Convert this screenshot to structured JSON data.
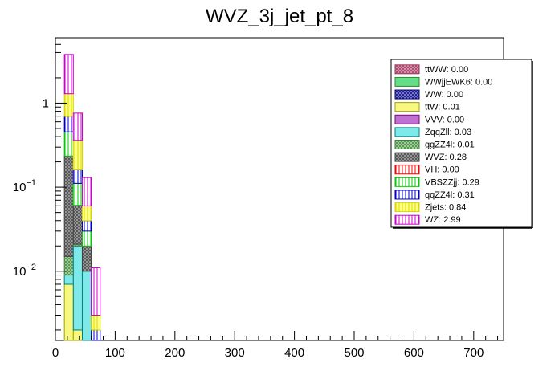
{
  "chart_data": {
    "type": "bar",
    "stacked": true,
    "title": "WVZ_3j_jet_pt_8",
    "xlabel": "",
    "ylabel": "",
    "xlim": [
      0,
      750
    ],
    "ylim": [
      0.0015,
      6
    ],
    "yscale": "log",
    "grid": false,
    "legend_position": "top-right",
    "x_ticks": [
      {
        "value": 0,
        "label": "0"
      },
      {
        "value": 100,
        "label": "100"
      },
      {
        "value": 200,
        "label": "200"
      },
      {
        "value": 300,
        "label": "300"
      },
      {
        "value": 400,
        "label": "400"
      },
      {
        "value": 500,
        "label": "500"
      },
      {
        "value": 600,
        "label": "600"
      },
      {
        "value": 700,
        "label": "700"
      }
    ],
    "y_ticks": [
      {
        "value": 1,
        "mant": "1",
        "exp": ""
      },
      {
        "value": 0.1,
        "mant": "10",
        "exp": "−1"
      },
      {
        "value": 0.01,
        "mant": "10",
        "exp": "−2"
      }
    ],
    "bin_edges": [
      15,
      30,
      45,
      60,
      75
    ],
    "series": [
      {
        "name": "ttWW: 0.00",
        "color": "#a0305a",
        "fill": "#d8a0b4",
        "pattern": "cross",
        "values": [
          0.0,
          0.0,
          0.0,
          0.0
        ]
      },
      {
        "name": "WWjjEWK6: 0.00",
        "color": "#2e8b2e",
        "fill": "#66dd88",
        "pattern": "solid",
        "values": [
          0.0,
          0.0,
          0.0,
          0.0
        ]
      },
      {
        "name": "WW: 0.00",
        "color": "#000080",
        "fill": "#8888cc",
        "pattern": "cross",
        "values": [
          0.0,
          0.0,
          0.0,
          0.0
        ]
      },
      {
        "name": "ttW: 0.01",
        "color": "#a0a000",
        "fill": "#f8f880",
        "pattern": "solid",
        "values": [
          0.007,
          0.002,
          0.0,
          0.0
        ]
      },
      {
        "name": "VVV: 0.00",
        "color": "#800080",
        "fill": "#c070d0",
        "pattern": "solid",
        "values": [
          0.0,
          0.0,
          0.0,
          0.0
        ]
      },
      {
        "name": "ZqqZll: 0.03",
        "color": "#008080",
        "fill": "#7fe8e8",
        "pattern": "solid",
        "values": [
          0.002,
          0.018,
          0.01,
          0.0
        ]
      },
      {
        "name": "ggZZ4l: 0.01",
        "color": "#408040",
        "fill": "#a8d8a0",
        "pattern": "cross",
        "values": [
          0.006,
          0.001,
          0.0,
          0.0
        ]
      },
      {
        "name": "WVZ: 0.28",
        "color": "#404040",
        "fill": "#a0a0a0",
        "pattern": "cross",
        "values": [
          0.22,
          0.04,
          0.01,
          0.0
        ]
      },
      {
        "name": "VH: 0.00",
        "color": "#ff0000",
        "fill": "#ffffff",
        "pattern": "vline",
        "values": [
          0.0,
          0.0,
          0.0,
          0.0
        ]
      },
      {
        "name": "VBSZZjj: 0.29",
        "color": "#00cc00",
        "fill": "#ffffff",
        "pattern": "vline",
        "values": [
          0.22,
          0.05,
          0.01,
          0.0
        ]
      },
      {
        "name": "qqZZ4l: 0.31",
        "color": "#0000cc",
        "fill": "#ffffff",
        "pattern": "vline",
        "values": [
          0.24,
          0.05,
          0.01,
          0.002
        ]
      },
      {
        "name": "Zjets: 0.84",
        "color": "#d8d800",
        "fill": "#ffff88",
        "pattern": "vline",
        "values": [
          0.6,
          0.2,
          0.02,
          0.001
        ]
      },
      {
        "name": "WZ: 2.99",
        "color": "#cc00cc",
        "fill": "#ffffff",
        "pattern": "vline",
        "values": [
          2.5,
          0.4,
          0.07,
          0.008
        ]
      }
    ]
  }
}
